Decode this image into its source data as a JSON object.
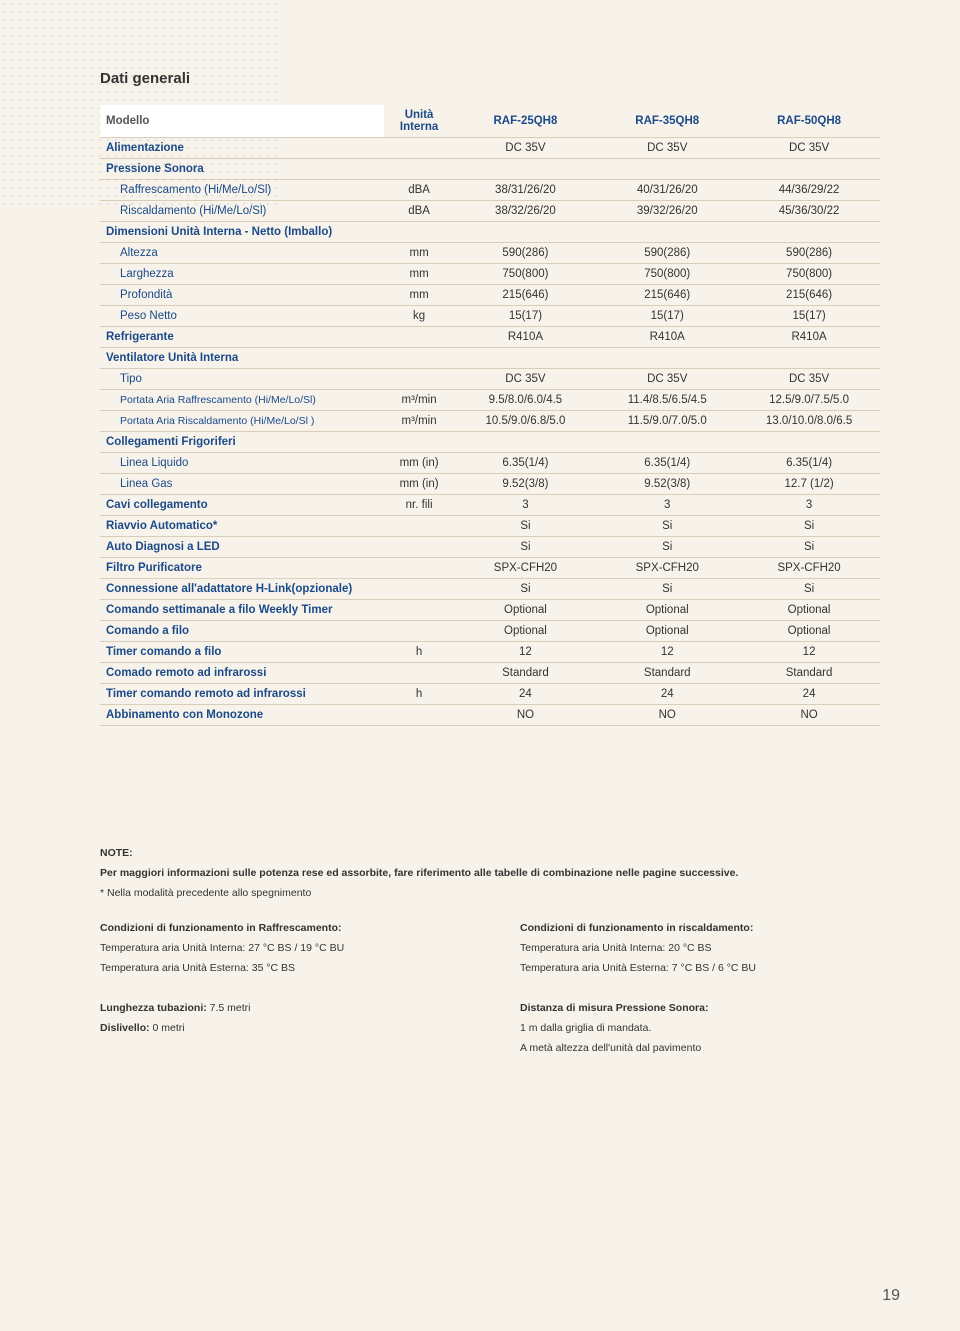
{
  "title": "Dati generali",
  "page_number": "19",
  "table": {
    "header": {
      "label": "Modello",
      "unit": "Unità Interna",
      "c1": "RAF-25QH8",
      "c2": "RAF-35QH8",
      "c3": "RAF-50QH8"
    },
    "rows": [
      {
        "style": "blue-bold",
        "label": "Alimentazione",
        "unit": "",
        "c1": "DC 35V",
        "c2": "DC 35V",
        "c3": "DC 35V"
      },
      {
        "style": "blue-bold",
        "label": "Pressione Sonora",
        "unit": "",
        "c1": "",
        "c2": "",
        "c3": ""
      },
      {
        "style": "blue indent",
        "label": "Raffrescamento (Hi/Me/Lo/Sl)",
        "unit": "dBA",
        "c1": "38/31/26/20",
        "c2": "40/31/26/20",
        "c3": "44/36/29/22"
      },
      {
        "style": "blue indent",
        "label": "Riscaldamento (Hi/Me/Lo/Sl)",
        "unit": "dBA",
        "c1": "38/32/26/20",
        "c2": "39/32/26/20",
        "c3": "45/36/30/22"
      },
      {
        "style": "blue-bold",
        "label": "Dimensioni Unità Interna - Netto (Imballo)",
        "unit": "",
        "c1": "",
        "c2": "",
        "c3": ""
      },
      {
        "style": "blue indent",
        "label": "Altezza",
        "unit": "mm",
        "c1": "590(286)",
        "c2": "590(286)",
        "c3": "590(286)"
      },
      {
        "style": "blue indent",
        "label": "Larghezza",
        "unit": "mm",
        "c1": "750(800)",
        "c2": "750(800)",
        "c3": "750(800)"
      },
      {
        "style": "blue indent",
        "label": "Profondità",
        "unit": "mm",
        "c1": "215(646)",
        "c2": "215(646)",
        "c3": "215(646)"
      },
      {
        "style": "blue indent",
        "label": "Peso Netto",
        "unit": "kg",
        "c1": "15(17)",
        "c2": "15(17)",
        "c3": "15(17)"
      },
      {
        "style": "blue-bold",
        "label": "Refrigerante",
        "unit": "",
        "c1": "R410A",
        "c2": "R410A",
        "c3": "R410A"
      },
      {
        "style": "blue-bold",
        "label": "Ventilatore Unità Interna",
        "unit": "",
        "c1": "",
        "c2": "",
        "c3": ""
      },
      {
        "style": "blue indent",
        "label": "Tipo",
        "unit": "",
        "c1": "DC 35V",
        "c2": "DC 35V",
        "c3": "DC 35V"
      },
      {
        "style": "blue indent small",
        "label": "Portata Aria Raffrescamento (Hi/Me/Lo/Sl)",
        "unit": "m³/min",
        "c1": "9.5/8.0/6.0/4.5",
        "c2": "11.4/8.5/6.5/4.5",
        "c3": "12.5/9.0/7.5/5.0"
      },
      {
        "style": "blue indent small",
        "label": "Portata Aria Riscaldamento (Hi/Me/Lo/Sl )",
        "unit": "m³/min",
        "c1": "10.5/9.0/6.8/5.0",
        "c2": "11.5/9.0/7.0/5.0",
        "c3": "13.0/10.0/8.0/6.5"
      },
      {
        "style": "blue-bold",
        "label": "Collegamenti Frigoriferi",
        "unit": "",
        "c1": "",
        "c2": "",
        "c3": ""
      },
      {
        "style": "blue indent",
        "label": "Linea Liquido",
        "unit": "mm (in)",
        "c1": "6.35(1/4)",
        "c2": "6.35(1/4)",
        "c3": "6.35(1/4)"
      },
      {
        "style": "blue indent",
        "label": "Linea Gas",
        "unit": "mm (in)",
        "c1": "9.52(3/8)",
        "c2": "9.52(3/8)",
        "c3": "12.7 (1/2)"
      },
      {
        "style": "blue-bold",
        "label": "Cavi collegamento",
        "unit": "nr. fili",
        "c1": "3",
        "c2": "3",
        "c3": "3"
      },
      {
        "style": "blue-bold",
        "label": "Riavvio Automatico*",
        "unit": "",
        "c1": "Si",
        "c2": "Si",
        "c3": "Si"
      },
      {
        "style": "blue-bold",
        "label": "Auto Diagnosi a LED",
        "unit": "",
        "c1": "Si",
        "c2": "Si",
        "c3": "Si"
      },
      {
        "style": "blue-bold",
        "label": "Filtro Purificatore",
        "unit": "",
        "c1": "SPX-CFH20",
        "c2": "SPX-CFH20",
        "c3": "SPX-CFH20"
      },
      {
        "style": "blue-bold",
        "label": "Connessione all'adattatore H-Link(opzionale)",
        "unit": "",
        "c1": "Si",
        "c2": "Si",
        "c3": "Si"
      },
      {
        "style": "blue-bold",
        "label": "Comando settimanale a filo Weekly Timer",
        "unit": "",
        "c1": "Optional",
        "c2": "Optional",
        "c3": "Optional"
      },
      {
        "style": "blue-bold",
        "label": "Comando a filo",
        "unit": "",
        "c1": "Optional",
        "c2": "Optional",
        "c3": "Optional"
      },
      {
        "style": "blue-bold",
        "label": "Timer comando a filo",
        "unit": "h",
        "c1": "12",
        "c2": "12",
        "c3": "12"
      },
      {
        "style": "blue-bold",
        "label": "Comado remoto ad infrarossi",
        "unit": "",
        "c1": "Standard",
        "c2": "Standard",
        "c3": "Standard"
      },
      {
        "style": "blue-bold",
        "label": "Timer comando remoto ad infrarossi",
        "unit": "h",
        "c1": "24",
        "c2": "24",
        "c3": "24"
      },
      {
        "style": "blue-bold",
        "label": "Abbinamento con Monozone",
        "unit": "",
        "c1": "NO",
        "c2": "NO",
        "c3": "NO"
      }
    ]
  },
  "notes": {
    "heading": "NOTE:",
    "line1": "Per maggiori informazioni sulle potenza rese ed assorbite, fare riferimento alle tabelle di combinazione nelle pagine successive.",
    "line2": "* Nella modalità precedente allo spegnimento",
    "col1a_title": "Condizioni di funzionamento in Raffrescamento:",
    "col1a_l1": "Temperatura aria Unità Interna:    27 °C BS / 19 °C BU",
    "col1a_l2": "Temperatura aria Unità Esterna:    35 °C BS",
    "col2a_title": "Condizioni di funzionamento in riscaldamento:",
    "col2a_l1": "Temperatura aria Unità Interna:    20 °C BS",
    "col2a_l2": "Temperatura aria Unità Esterna:    7 °C BS / 6 °C BU",
    "col1b_l1_b": "Lunghezza tubazioni:",
    "col1b_l1": " 7.5 metri",
    "col1b_l2_b": "Dislivello:",
    "col1b_l2": " 0 metri",
    "col2b_title": "Distanza di misura Pressione Sonora:",
    "col2b_l1": "1 m dalla griglia di mandata.",
    "col2b_l2": "A metà altezza dell'unità dal pavimento"
  },
  "colors": {
    "background": "#f8f3ea",
    "row_border": "#d8cdb9",
    "blue": "#1a4a8a",
    "text": "#333333",
    "dots": "#c9d5e6"
  }
}
